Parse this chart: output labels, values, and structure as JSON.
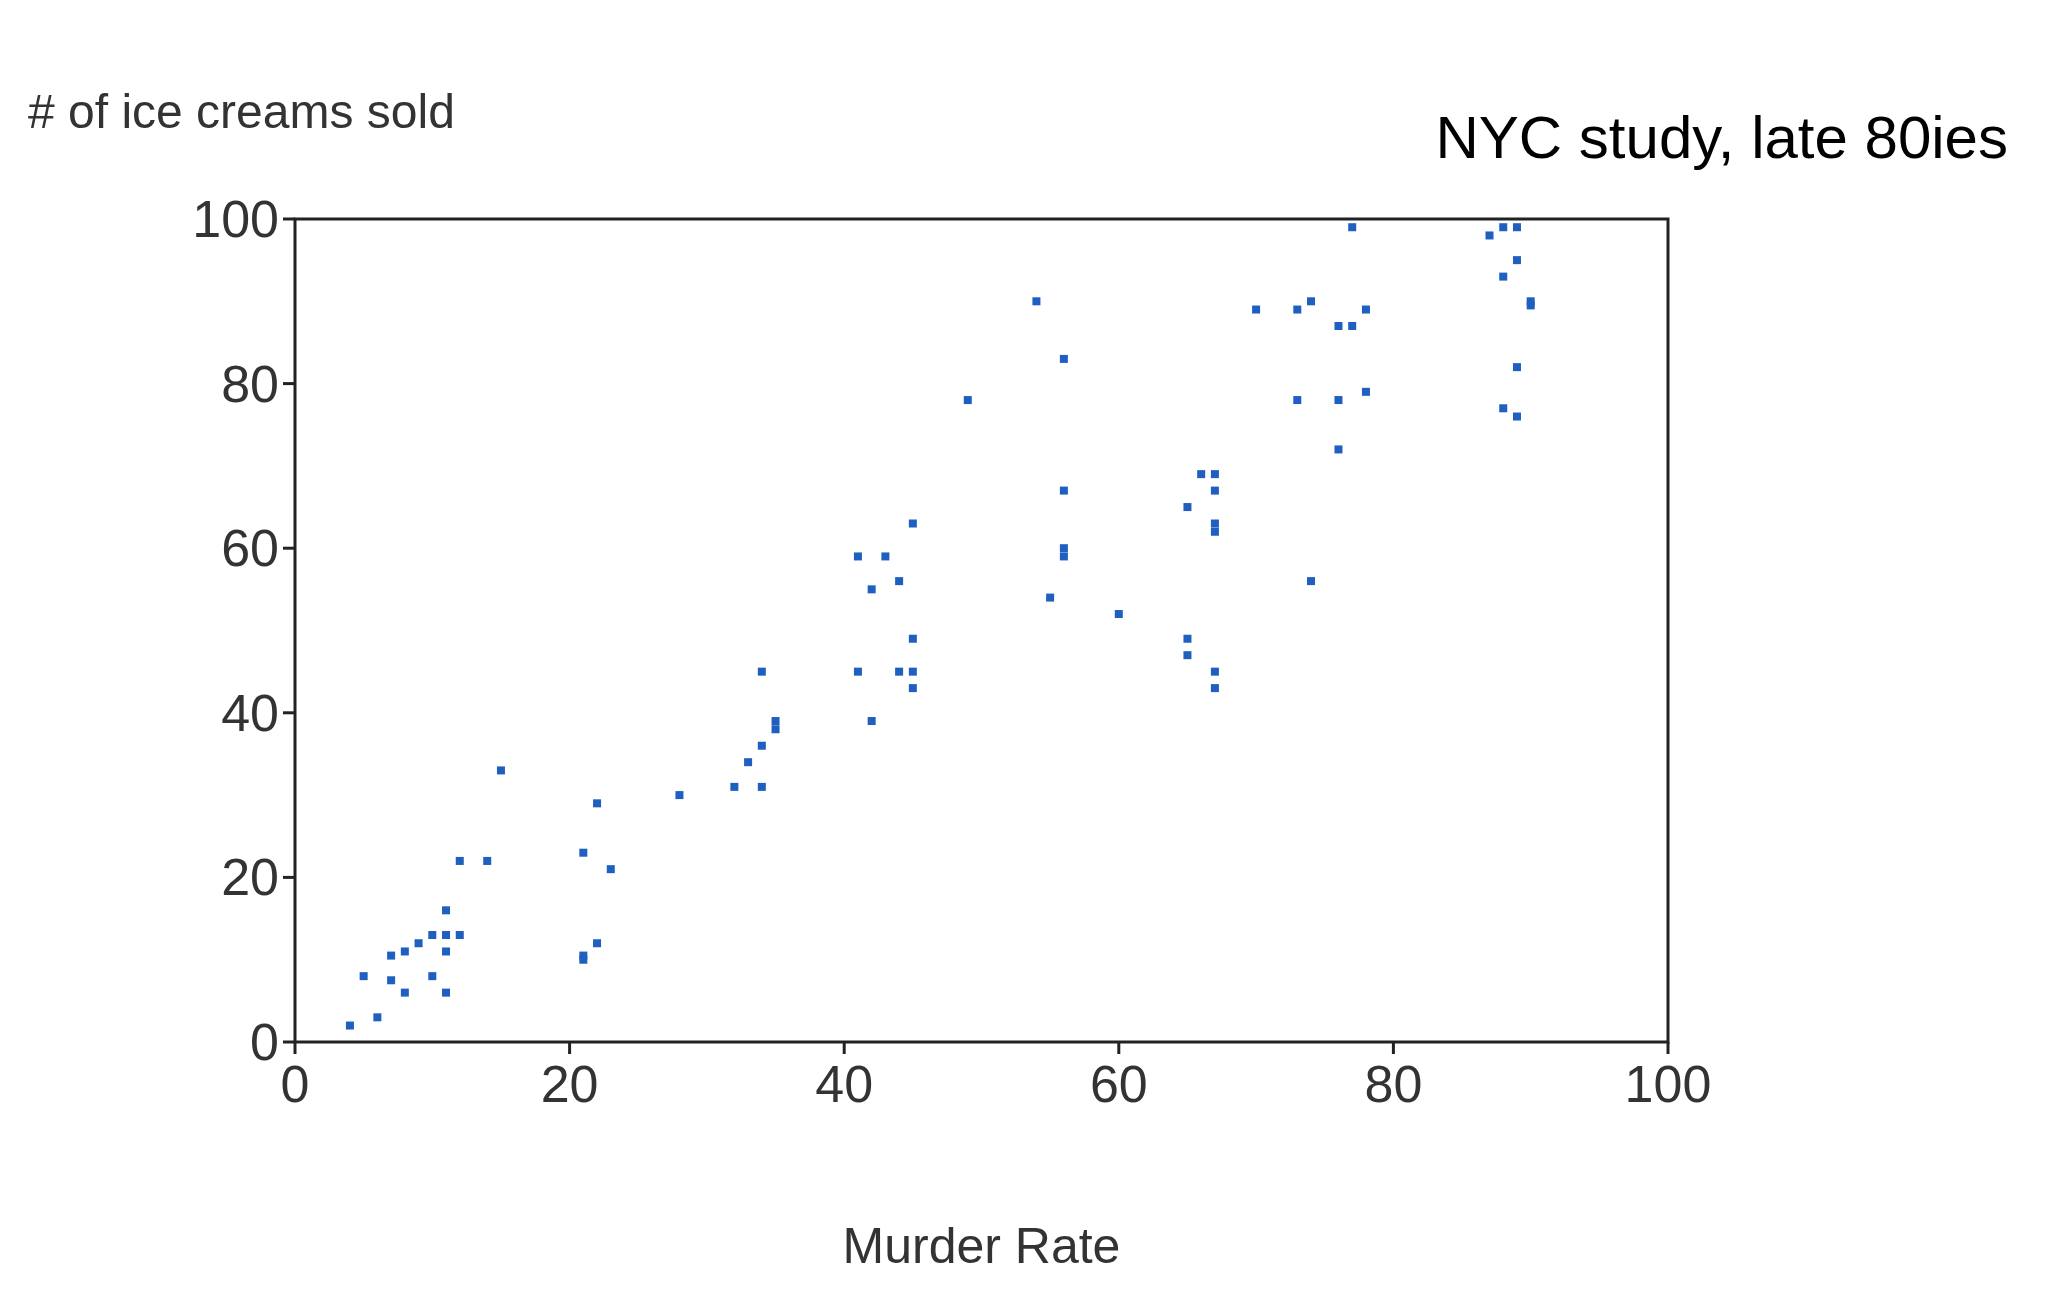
{
  "chart_data": {
    "type": "scatter",
    "title": "NYC study, late 80ies",
    "xlabel": "Murder Rate",
    "ylabel": "# of ice creams sold",
    "xlim": [
      0,
      100
    ],
    "ylim": [
      0,
      100
    ],
    "xticks": [
      0,
      20,
      40,
      60,
      80,
      100
    ],
    "yticks": [
      0,
      20,
      40,
      60,
      80,
      100
    ],
    "grid": false,
    "marker": "square",
    "series": [
      {
        "color": "#1f5fbf",
        "x": [
          4,
          6,
          5,
          7,
          8,
          7,
          8,
          9,
          10,
          10,
          11,
          12,
          11,
          11,
          11,
          12,
          14,
          15,
          21,
          22,
          23,
          21,
          22,
          21,
          28,
          32,
          33,
          34,
          34,
          34,
          35,
          35,
          41,
          43,
          42,
          44,
          45,
          41,
          42,
          44,
          45,
          45,
          45,
          49,
          54,
          56,
          56,
          56,
          56,
          55,
          60,
          65,
          66,
          67,
          67,
          67,
          67,
          65,
          65,
          67,
          67,
          70,
          73,
          74,
          73,
          74,
          76,
          77,
          78,
          76,
          78,
          76,
          77,
          87,
          88,
          89,
          89,
          88,
          90,
          90,
          89,
          88,
          89
        ],
        "values": [
          2,
          3,
          8,
          10.5,
          11,
          7.5,
          6,
          12,
          13,
          8,
          13,
          13,
          16,
          11,
          6,
          22,
          22,
          33,
          23,
          29,
          21,
          10.5,
          12,
          10,
          30,
          31,
          34,
          36,
          31,
          45,
          39,
          38,
          59,
          59,
          55,
          56,
          63,
          45,
          39,
          45,
          45,
          49,
          43,
          78,
          90,
          83,
          67,
          60,
          59,
          54,
          52,
          65,
          69,
          69,
          67,
          63,
          62,
          49,
          47,
          45,
          43,
          89,
          89,
          90,
          78,
          56,
          87,
          87,
          89,
          78,
          79,
          72,
          99,
          98,
          99,
          99,
          95,
          93,
          90,
          89.5,
          82,
          77,
          76
        ]
      }
    ]
  }
}
